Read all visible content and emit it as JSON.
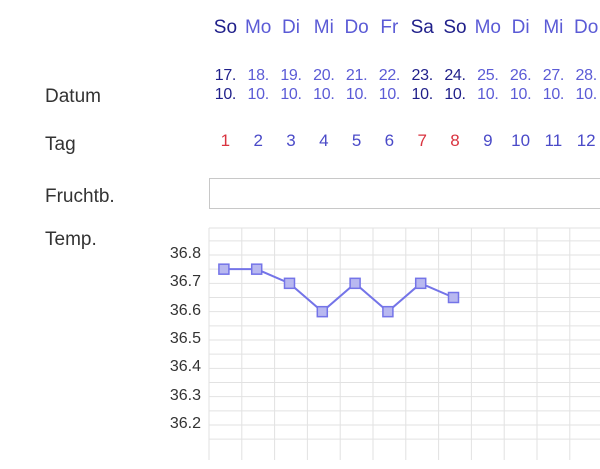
{
  "labels": {
    "datum": "Datum",
    "tag": "Tag",
    "fruchtbarkeit": "Fruchtb.",
    "temperatur": "Temp."
  },
  "colors": {
    "weekday_normal": "#5b5bd6",
    "weekend": "#1f1f8a",
    "cycle_day_normal": "#4a4ac8",
    "cycle_day_highlight": "#d9333f",
    "line": "#7474e8",
    "marker_fill": "#b8b8f0",
    "grid": "#e2e2e2"
  },
  "days": [
    {
      "weekday": "So",
      "day": "17.",
      "month": "10.",
      "cycle": "1",
      "weekend": true
    },
    {
      "weekday": "Mo",
      "day": "18.",
      "month": "10.",
      "cycle": "2",
      "weekend": false
    },
    {
      "weekday": "Di",
      "day": "19.",
      "month": "10.",
      "cycle": "3",
      "weekend": false
    },
    {
      "weekday": "Mi",
      "day": "20.",
      "month": "10.",
      "cycle": "4",
      "weekend": false
    },
    {
      "weekday": "Do",
      "day": "21.",
      "month": "10.",
      "cycle": "5",
      "weekend": false
    },
    {
      "weekday": "Fr",
      "day": "22.",
      "month": "10.",
      "cycle": "6",
      "weekend": false
    },
    {
      "weekday": "Sa",
      "day": "23.",
      "month": "10.",
      "cycle": "7",
      "weekend": true
    },
    {
      "weekday": "So",
      "day": "24.",
      "month": "10.",
      "cycle": "8",
      "weekend": true
    },
    {
      "weekday": "Mo",
      "day": "25.",
      "month": "10.",
      "cycle": "9",
      "weekend": false
    },
    {
      "weekday": "Di",
      "day": "26.",
      "month": "10.",
      "cycle": "10",
      "weekend": false
    },
    {
      "weekday": "Mi",
      "day": "27.",
      "month": "10.",
      "cycle": "11",
      "weekend": false
    },
    {
      "weekday": "Do",
      "day": "28.",
      "month": "10.",
      "cycle": "12",
      "weekend": false
    }
  ],
  "highlight_cycle_days": [
    "1",
    "7",
    "8"
  ],
  "chart_data": {
    "type": "line",
    "ylabel": "Temp.",
    "yticks": [
      "36.8",
      "36.7",
      "36.6",
      "36.5",
      "36.4",
      "36.3",
      "36.2"
    ],
    "ylim": [
      36.15,
      36.85
    ],
    "grid": true,
    "categories": [
      "1",
      "2",
      "3",
      "4",
      "5",
      "6",
      "7",
      "8",
      "9",
      "10",
      "11",
      "12"
    ],
    "values": [
      36.75,
      36.75,
      36.7,
      36.6,
      36.7,
      36.6,
      36.7,
      36.65,
      null,
      null,
      null,
      null
    ]
  }
}
